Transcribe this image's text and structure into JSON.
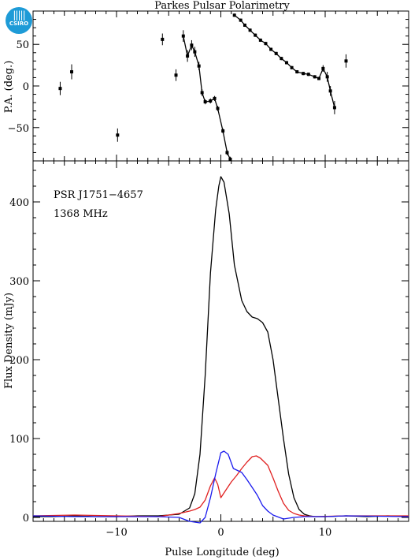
{
  "logo": {
    "text": "CSIRO",
    "icon": "csiro-logo-icon",
    "color": "#1e9bd7"
  },
  "chart_data": [
    {
      "type": "scatter",
      "title": "Parkes Pulsar Polarimetry",
      "ylabel": "P.A. (deg.)",
      "xlim": [
        -18,
        18
      ],
      "ylim": [
        -90,
        90
      ],
      "yticks": [
        -50,
        0,
        50
      ],
      "xticks": [
        -10,
        0,
        10
      ],
      "series": [
        {
          "color": "#000000",
          "points": [
            [
              -15.4,
              -3,
              8
            ],
            [
              -14.3,
              17,
              9
            ],
            [
              -9.9,
              -59,
              8
            ],
            [
              -5.6,
              56,
              7
            ],
            [
              -4.3,
              13,
              7
            ],
            [
              -3.6,
              60,
              7
            ],
            [
              -3.2,
              36,
              7
            ],
            [
              -2.8,
              49,
              6
            ],
            [
              -2.5,
              41,
              6
            ],
            [
              -2.1,
              24,
              5
            ],
            [
              -1.8,
              -8,
              4
            ],
            [
              -1.5,
              -19,
              3
            ],
            [
              -1.0,
              -18,
              3
            ],
            [
              -0.6,
              -15,
              3
            ],
            [
              -0.3,
              -27,
              3
            ],
            [
              0.2,
              -54,
              3
            ],
            [
              0.6,
              -80,
              3
            ],
            [
              0.9,
              -88,
              3
            ],
            [
              1.3,
              85,
              2
            ],
            [
              1.9,
              79,
              2
            ],
            [
              2.3,
              73,
              2
            ],
            [
              2.8,
              67,
              2
            ],
            [
              3.3,
              61,
              2
            ],
            [
              3.8,
              55,
              2
            ],
            [
              4.3,
              51,
              2
            ],
            [
              4.8,
              44,
              2
            ],
            [
              5.3,
              39,
              2
            ],
            [
              5.8,
              33,
              2
            ],
            [
              6.3,
              28,
              2
            ],
            [
              6.8,
              22,
              2
            ],
            [
              7.3,
              17,
              2
            ],
            [
              7.9,
              15,
              2
            ],
            [
              8.4,
              14,
              2
            ],
            [
              9.0,
              11,
              2
            ],
            [
              9.4,
              9,
              2
            ],
            [
              9.8,
              21,
              4
            ],
            [
              10.2,
              11,
              6
            ],
            [
              10.5,
              -6,
              6
            ],
            [
              10.9,
              -26,
              8
            ],
            [
              12.0,
              30,
              8
            ]
          ],
          "connected": [
            [
              [
                -3.6,
                60
              ],
              [
                -3.2,
                36
              ],
              [
                -2.8,
                49
              ],
              [
                -2.5,
                41
              ],
              [
                -2.1,
                24
              ],
              [
                -1.8,
                -8
              ],
              [
                -1.5,
                -19
              ],
              [
                -1.0,
                -18
              ],
              [
                -0.6,
                -15
              ],
              [
                -0.3,
                -27
              ],
              [
                0.2,
                -54
              ],
              [
                0.6,
                -80
              ],
              [
                0.9,
                -88
              ]
            ],
            [
              [
                1.3,
                85
              ],
              [
                1.9,
                79
              ],
              [
                2.3,
                73
              ],
              [
                2.8,
                67
              ],
              [
                3.3,
                61
              ],
              [
                3.8,
                55
              ],
              [
                4.3,
                51
              ],
              [
                4.8,
                44
              ],
              [
                5.3,
                39
              ],
              [
                5.8,
                33
              ],
              [
                6.3,
                28
              ],
              [
                6.8,
                22
              ],
              [
                7.3,
                17
              ],
              [
                7.9,
                15
              ],
              [
                8.4,
                14
              ],
              [
                9.0,
                11
              ],
              [
                9.4,
                9
              ],
              [
                9.8,
                21
              ],
              [
                10.2,
                11
              ],
              [
                10.5,
                -6
              ],
              [
                10.9,
                -26
              ]
            ]
          ]
        }
      ]
    },
    {
      "type": "line",
      "xlabel": "Pulse Longitude (deg)",
      "ylabel": "Flux Density (mJy)",
      "xlim": [
        -18,
        18
      ],
      "ylim": [
        -5,
        452
      ],
      "yticks": [
        0,
        100,
        200,
        300,
        400
      ],
      "xticks": [
        -10,
        0,
        10
      ],
      "annotations": [
        "PSR J1751−4657",
        "1368 MHz"
      ],
      "series": [
        {
          "color": "#000000",
          "x": [
            -18,
            -16,
            -14,
            -12,
            -10,
            -8,
            -6,
            -4,
            -3,
            -2.5,
            -2,
            -1.5,
            -1,
            -0.5,
            -0.2,
            0,
            0.3,
            0.8,
            1.3,
            2,
            2.5,
            3,
            3.5,
            4,
            4.5,
            5,
            5.5,
            6,
            6.5,
            7,
            7.5,
            8,
            8.5,
            9,
            10,
            12,
            14,
            16,
            18
          ],
          "values": [
            1,
            1,
            2,
            1,
            1,
            2,
            2,
            4,
            12,
            30,
            80,
            180,
            310,
            390,
            420,
            432,
            425,
            385,
            320,
            275,
            261,
            254,
            252,
            247,
            235,
            200,
            150,
            100,
            55,
            25,
            10,
            4,
            2,
            1,
            1,
            2,
            1,
            2,
            1
          ]
        },
        {
          "color": "#e02020",
          "x": [
            -18,
            -14,
            -10,
            -6,
            -4,
            -3,
            -2.5,
            -2,
            -1.5,
            -1,
            -0.6,
            -0.3,
            0,
            0.5,
            1,
            1.5,
            2,
            2.5,
            3,
            3.4,
            3.8,
            4.5,
            5,
            5.5,
            6,
            6.5,
            7,
            7.5,
            8,
            9,
            12,
            18
          ],
          "values": [
            2,
            3,
            2,
            1,
            5,
            8,
            10,
            13,
            22,
            40,
            50,
            42,
            25,
            35,
            45,
            53,
            62,
            70,
            77,
            78,
            75,
            66,
            50,
            33,
            18,
            9,
            5,
            3,
            2,
            1,
            2,
            2
          ]
        },
        {
          "color": "#1a1aee",
          "x": [
            -18,
            -14,
            -10,
            -6,
            -4,
            -3,
            -2,
            -1.5,
            -1,
            -0.5,
            0,
            0.3,
            0.7,
            1.2,
            2,
            2.5,
            3,
            3.5,
            4,
            4.5,
            5,
            6,
            7,
            8,
            10,
            12,
            18
          ],
          "values": [
            2,
            1,
            1,
            1,
            0,
            -5,
            -7,
            0,
            25,
            55,
            82,
            84,
            80,
            62,
            57,
            48,
            38,
            28,
            15,
            8,
            3,
            -2,
            0,
            1,
            1,
            2,
            1
          ]
        }
      ]
    }
  ]
}
